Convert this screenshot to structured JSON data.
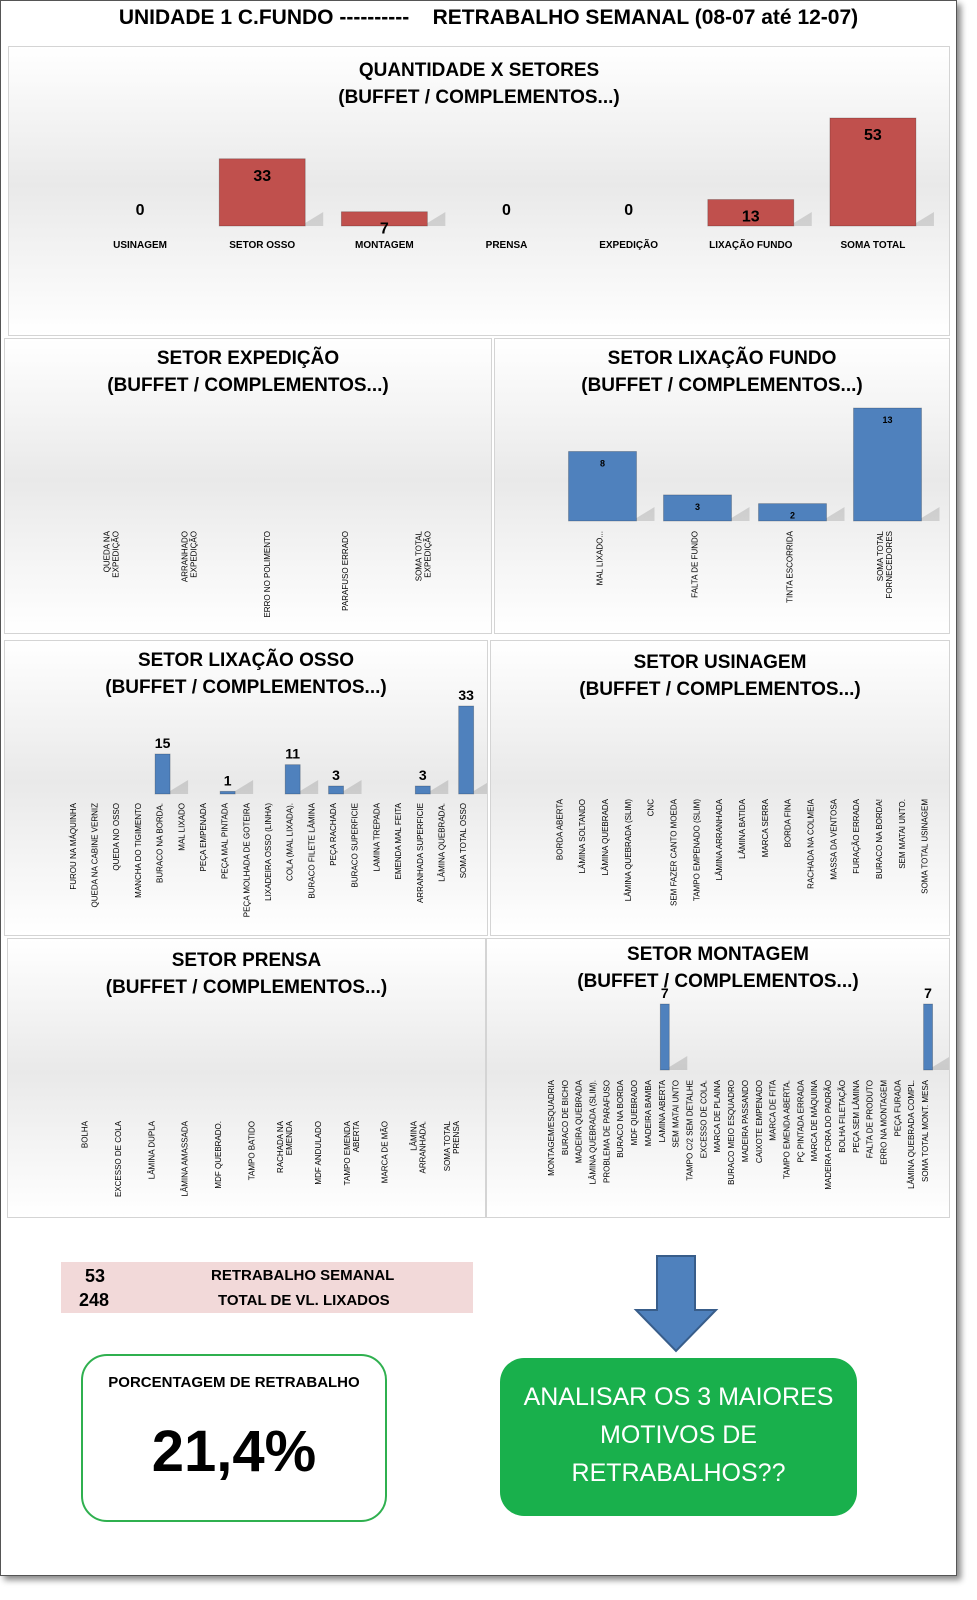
{
  "header": {
    "title": "UNIDADE 1 C.FUNDO ----------    RETRABALHO SEMANAL (08-07 até 12-07)"
  },
  "colors": {
    "red": "#c0504d",
    "blue": "#4f81bd",
    "green": "#19b04c",
    "pink": "#f2d9d9"
  },
  "chart_data": [
    {
      "type": "bar",
      "title": "QUANTIDADE X SETORES",
      "subtitle": "(BUFFET / COMPLEMENTOS...)",
      "categories": [
        "USINAGEM",
        "SETOR OSSO",
        "MONTAGEM",
        "PRENSA",
        "EXPEDIÇÃO",
        "LIXAÇÃO FUNDO",
        "SOMA TOTAL"
      ],
      "values": [
        0,
        33,
        7,
        0,
        0,
        13,
        53
      ],
      "ylim": [
        0,
        53
      ]
    },
    {
      "type": "bar",
      "title": "SETOR EXPEDIÇÃO",
      "subtitle": "(BUFFET / COMPLEMENTOS...)",
      "categories": [
        "QUEDA NA\nEXPEDIÇÃO",
        "ARRANHADO\nEXPEDIÇÃO",
        "ERRO NO POLIMENTO",
        "PARAFUSO ERRADO",
        "SOMA TOTAL\nEXPEDIÇÃO"
      ],
      "values": [
        0,
        0,
        0,
        0,
        0
      ],
      "ylim": [
        0,
        13
      ]
    },
    {
      "type": "bar",
      "title": "SETOR LIXAÇÃO FUNDO",
      "subtitle": "(BUFFET / COMPLEMENTOS...)",
      "categories": [
        "MAL LIXADO...",
        "FALTA DE FUNDO",
        "TINTA ESCORRIDA",
        "SOMA TOTAL\nFORNECEDORES"
      ],
      "values": [
        8,
        3,
        2,
        13
      ],
      "ylim": [
        0,
        13
      ]
    },
    {
      "type": "bar",
      "title": "SETOR  LIXAÇÃO OSSO",
      "subtitle": "(BUFFET / COMPLEMENTOS...)",
      "categories": [
        "FUROU NA MÁQUINHA",
        "QUEDA  NA CABINE VERNIZ",
        "QUEDA NO OSSO",
        "MANCHA DO TIGIMENTO",
        "BURACO NA BORDA.",
        "MAL LIXADO",
        "PEÇA EMPENADA",
        "PEÇA MAL PINTADA",
        "PEÇA MOLHADA DE GOTEIRA",
        "LIXADEIRA OSSO (LINHA)",
        "COLA (MAL LIXADA).",
        "BURACO FILETE LÂMINA",
        "PEÇA RACHADA",
        "BURACO SUPERFICIE",
        "LAMINA TREPADA",
        "EMENDA MAL FEITA",
        "ARRANHADA SUPERFICIE",
        "LÂMINA QUEBRADA.",
        "SOMA TOTAL OSSO"
      ],
      "values": [
        null,
        null,
        null,
        null,
        15,
        null,
        null,
        1,
        null,
        null,
        11,
        null,
        3,
        null,
        null,
        null,
        3,
        null,
        33
      ],
      "ylim": [
        0,
        33
      ]
    },
    {
      "type": "bar",
      "title": "SETOR USINAGEM",
      "subtitle": "(BUFFET / COMPLEMENTOS...)",
      "categories": [
        "BORDA ABERTA",
        "LÂMINA SOLTANDO",
        "LÂMINA QUEBRADA",
        "LÂMINA QUEBRADA (SLIM)",
        "CNC",
        "SEM FAZER CANTO MOEDA",
        "TAMPO EMPENADO (SLIM)",
        "LÂMINA ARRANHADA",
        "LÂMINA BATIDA",
        "MARCA SERRA",
        "BORDA FINA",
        "RACHADA NA COLMEIA",
        "MASSA DA VENTOSA",
        "FURAÇÃO ERRADA",
        "BURACO NA BORDA!",
        "SEM MATAI UNTO.",
        "SOMA TOTAL USINAGEM"
      ],
      "values": [
        0,
        0,
        0,
        0,
        0,
        0,
        0,
        0,
        0,
        0,
        0,
        0,
        0,
        0,
        0,
        0,
        0
      ],
      "ylim": [
        0,
        13
      ]
    },
    {
      "type": "bar",
      "title": "SETOR PRENSA",
      "subtitle": "(BUFFET / COMPLEMENTOS...)",
      "categories": [
        "BOLHA",
        "EXCESSO DE COLA",
        "LÂMINA DUPLA",
        "LÂMINA AMASSADA",
        "MDF QUEBRADO.",
        "TAMPO BATIDO",
        "RACHADA NA\nEMENDA",
        "MDF ANDULADO",
        "TAMPO EMENDA\nABERTA",
        "MARCA DE MÃO",
        "LÂMINA\nARRANHADA.",
        "SOMA TOTAL\nPRENSA"
      ],
      "values": [
        0,
        0,
        0,
        0,
        0,
        0,
        0,
        0,
        0,
        0,
        0,
        0
      ],
      "ylim": [
        0,
        13
      ]
    },
    {
      "type": "bar",
      "title": "SETOR MONTAGEM",
      "subtitle": "(BUFFET / COMPLEMENTOS...)",
      "categories": [
        "MONTAGEM/ESQUADRIA",
        "BURACO DE BICHO",
        "MADEIRA QUEBRADA",
        "LÂMINA QUEBRADA (SLIM).",
        "PROBLEMA DE PARAFUSO",
        "BURACO NA BORDA",
        "MDF QUEBRADO",
        "MADEIRA BAMBA",
        "LAMINA ABERTA",
        "SEM MATAI UNTO",
        "TAMPO C/2 SEM DETALHE",
        "EXCESSO DE COLA.",
        "MARCA DE PLAINA",
        "BURACO MEIO ESQUADRO",
        "MADEIRA PASSANDO",
        "CAIXOTE EMPENADO",
        "MARCA DE FITA",
        "TAMPO EMENDA ABERTA.",
        "PÇ PINTADA ERRADA",
        "MARCA DE MÁQUINA",
        "MADEIRA FORA DO PADRÃO",
        "BOLHA FILETAÇÃO",
        "PEÇA SEM LÂMINA",
        "FALTA DE PRODUTO",
        "ERRO NA MONTAGEM",
        "PEÇA FURADA",
        "LÂMINA QUEBRADA COMPL.",
        "SOMA TOTAL MONT. MESA"
      ],
      "values": [
        null,
        null,
        null,
        null,
        null,
        null,
        null,
        null,
        7,
        null,
        null,
        null,
        null,
        null,
        null,
        null,
        null,
        null,
        null,
        null,
        null,
        null,
        null,
        null,
        null,
        null,
        null,
        7
      ],
      "ylim": [
        0,
        7
      ]
    }
  ],
  "summary": {
    "weekly_value": "53",
    "weekly_label": "RETRABALHO SEMANAL",
    "total_value": "248",
    "total_label": "TOTAL DE VL. LIXADOS"
  },
  "percentage": {
    "label": "PORCENTAGEM DE RETRABALHO",
    "value": "21,4%"
  },
  "action": {
    "text": "ANALISAR OS 3 MAIORES\nMOTIVOS DE\nRETRABALHOS??"
  }
}
